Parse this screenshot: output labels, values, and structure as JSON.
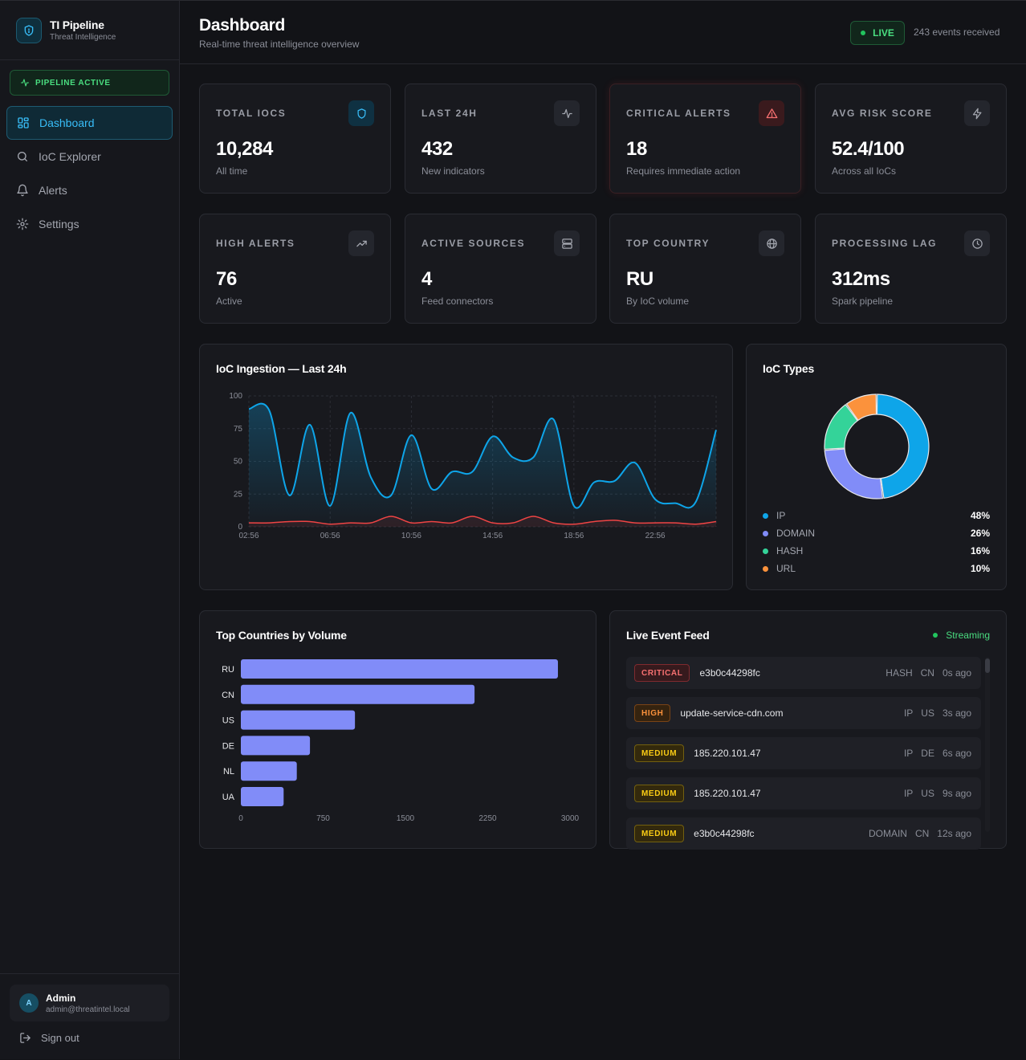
{
  "brand": {
    "title": "TI Pipeline",
    "subtitle": "Threat Intelligence"
  },
  "pipeline_status": "PIPELINE ACTIVE",
  "nav": [
    {
      "label": "Dashboard",
      "icon": "dashboard-icon",
      "active": true
    },
    {
      "label": "IoC Explorer",
      "icon": "search-icon"
    },
    {
      "label": "Alerts",
      "icon": "bell-icon"
    },
    {
      "label": "Settings",
      "icon": "gear-icon"
    }
  ],
  "user": {
    "initial": "A",
    "name": "Admin",
    "email": "admin@threatintel.local",
    "signout_label": "Sign out"
  },
  "header": {
    "title": "Dashboard",
    "subtitle": "Real-time threat intelligence overview",
    "live_label": "LIVE",
    "events_received": "243 events received"
  },
  "kpis": [
    {
      "label": "TOTAL IOCS",
      "value": "10,284",
      "sub": "All time",
      "icon": "shield-icon"
    },
    {
      "label": "LAST 24H",
      "value": "432",
      "sub": "New indicators",
      "icon": "activity-icon"
    },
    {
      "label": "CRITICAL ALERTS",
      "value": "18",
      "sub": "Requires immediate action",
      "icon": "warning-icon"
    },
    {
      "label": "AVG RISK SCORE",
      "value": "52.4/100",
      "sub": "Across all IoCs",
      "icon": "lightning-icon"
    },
    {
      "label": "HIGH ALERTS",
      "value": "76",
      "sub": "Active",
      "icon": "trending-up-icon"
    },
    {
      "label": "ACTIVE SOURCES",
      "value": "4",
      "sub": "Feed connectors",
      "icon": "server-icon"
    },
    {
      "label": "TOP COUNTRY",
      "value": "RU",
      "sub": "By IoC volume",
      "icon": "globe-icon"
    },
    {
      "label": "PROCESSING LAG",
      "value": "312ms",
      "sub": "Spark pipeline",
      "icon": "clock-icon"
    }
  ],
  "panels": {
    "ingestion_title": "IoC Ingestion — Last 24h",
    "types_title": "IoC Types",
    "countries_title": "Top Countries by Volume",
    "feed_title": "Live Event Feed",
    "feed_status": "Streaming"
  },
  "chart_data": [
    {
      "type": "area",
      "title": "IoC Ingestion — Last 24h",
      "x": [
        "02:56",
        "03:56",
        "04:56",
        "05:56",
        "06:56",
        "07:56",
        "08:56",
        "09:56",
        "10:56",
        "11:56",
        "12:56",
        "13:56",
        "14:56",
        "15:56",
        "16:56",
        "17:56",
        "18:56",
        "19:56",
        "20:56",
        "21:56",
        "22:56",
        "23:56",
        "00:56",
        "01:56"
      ],
      "x_tick_labels": [
        "02:56",
        "06:56",
        "10:56",
        "14:56",
        "18:56",
        "22:56"
      ],
      "ylim": [
        0,
        100
      ],
      "y_ticks": [
        0,
        25,
        50,
        75,
        100
      ],
      "grid": true,
      "series": [
        {
          "color": "#0ea5e9",
          "values": [
            90,
            89,
            24,
            78,
            16,
            87,
            38,
            24,
            70,
            29,
            42,
            42,
            69,
            53,
            53,
            82,
            16,
            34,
            35,
            49,
            21,
            18,
            19,
            74
          ]
        },
        {
          "color": "#ef4444",
          "values": [
            3,
            3,
            4,
            4,
            2,
            3,
            3,
            8,
            3,
            4,
            3,
            8,
            3,
            3,
            8,
            3,
            2,
            4,
            5,
            3,
            3,
            3,
            2,
            4
          ]
        }
      ]
    },
    {
      "type": "pie",
      "title": "IoC Types",
      "donut": true,
      "categories": [
        "IP",
        "DOMAIN",
        "HASH",
        "URL"
      ],
      "values": [
        48,
        26,
        16,
        10
      ],
      "labels": [
        "48%",
        "26%",
        "16%",
        "10%"
      ],
      "colors": [
        "#0ea5e9",
        "#818cf8",
        "#34d399",
        "#fb923c"
      ],
      "legend": "bottom"
    },
    {
      "type": "bar",
      "orientation": "horizontal",
      "title": "Top Countries by Volume",
      "categories": [
        "RU",
        "CN",
        "US",
        "DE",
        "NL",
        "UA"
      ],
      "values": [
        2890,
        2130,
        1040,
        630,
        510,
        390
      ],
      "xlim": [
        0,
        3000
      ],
      "x_ticks": [
        0,
        750,
        1500,
        2250,
        3000
      ],
      "color": "#818cf8"
    }
  ],
  "feed": [
    {
      "severity": "CRITICAL",
      "sev_class": "critical",
      "value": "e3b0c44298fc",
      "type": "HASH",
      "country": "CN",
      "time": "0s ago"
    },
    {
      "severity": "HIGH",
      "sev_class": "high",
      "value": "update-service-cdn.com",
      "type": "IP",
      "country": "US",
      "time": "3s ago"
    },
    {
      "severity": "MEDIUM",
      "sev_class": "medium",
      "value": "185.220.101.47",
      "type": "IP",
      "country": "DE",
      "time": "6s ago"
    },
    {
      "severity": "MEDIUM",
      "sev_class": "medium",
      "value": "185.220.101.47",
      "type": "IP",
      "country": "US",
      "time": "9s ago"
    },
    {
      "severity": "MEDIUM",
      "sev_class": "medium",
      "value": "e3b0c44298fc",
      "type": "DOMAIN",
      "country": "CN",
      "time": "12s ago"
    }
  ]
}
